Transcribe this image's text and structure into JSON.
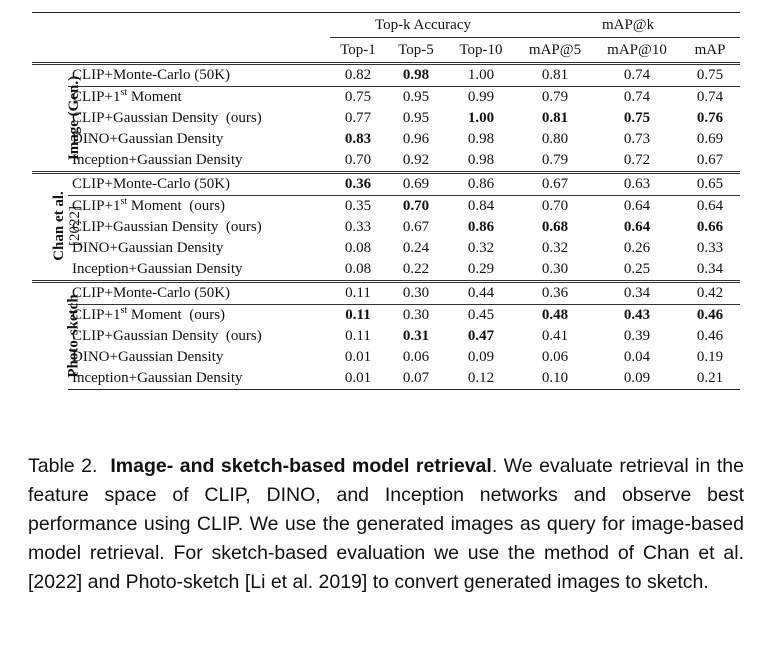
{
  "table": {
    "group_headers": {
      "topk": "Top-k Accuracy",
      "map": "mAP@k"
    },
    "columns": [
      "Top-1",
      "Top-5",
      "Top-10",
      "mAP@5",
      "mAP@10",
      "mAP"
    ],
    "sections": [
      {
        "label": "Image (Gen.)",
        "sublabel": "",
        "rows": [
          {
            "method": "CLIP+Monte-Carlo (50K)",
            "values": [
              "0.82",
              "0.98",
              "1.00",
              "0.81",
              "0.74",
              "0.75"
            ],
            "bold": [
              false,
              true,
              false,
              false,
              false,
              false
            ]
          },
          {
            "method_pre": "CLIP+1",
            "method_sup": "st",
            "method_post": " Moment",
            "values": [
              "0.75",
              "0.95",
              "0.99",
              "0.79",
              "0.74",
              "0.74"
            ],
            "bold": [
              false,
              false,
              false,
              false,
              false,
              false
            ]
          },
          {
            "method": "CLIP+Gaussian Density  (ours)",
            "values": [
              "0.77",
              "0.95",
              "1.00",
              "0.81",
              "0.75",
              "0.76"
            ],
            "bold": [
              false,
              false,
              true,
              true,
              true,
              true
            ]
          },
          {
            "method": "DINO+Gaussian Density",
            "values": [
              "0.83",
              "0.96",
              "0.98",
              "0.80",
              "0.73",
              "0.69"
            ],
            "bold": [
              true,
              false,
              false,
              false,
              false,
              false
            ]
          },
          {
            "method": "Inception+Gaussian Density",
            "values": [
              "0.70",
              "0.92",
              "0.98",
              "0.79",
              "0.72",
              "0.67"
            ],
            "bold": [
              false,
              false,
              false,
              false,
              false,
              false
            ]
          }
        ]
      },
      {
        "label": "Chan et al.",
        "sublabel": "[2022]",
        "rows": [
          {
            "method": "CLIP+Monte-Carlo (50K)",
            "values": [
              "0.36",
              "0.69",
              "0.86",
              "0.67",
              "0.63",
              "0.65"
            ],
            "bold": [
              true,
              false,
              false,
              false,
              false,
              false
            ]
          },
          {
            "method_pre": "CLIP+1",
            "method_sup": "st",
            "method_post": " Moment  (ours)",
            "values": [
              "0.35",
              "0.70",
              "0.84",
              "0.70",
              "0.64",
              "0.64"
            ],
            "bold": [
              false,
              true,
              false,
              false,
              false,
              false
            ]
          },
          {
            "method": "CLIP+Gaussian Density  (ours)",
            "values": [
              "0.33",
              "0.67",
              "0.86",
              "0.68",
              "0.64",
              "0.66"
            ],
            "bold": [
              false,
              false,
              true,
              true,
              true,
              true
            ]
          },
          {
            "method": "DINO+Gaussian Density",
            "values": [
              "0.08",
              "0.24",
              "0.32",
              "0.32",
              "0.26",
              "0.33"
            ],
            "bold": [
              false,
              false,
              false,
              false,
              false,
              false
            ]
          },
          {
            "method": "Inception+Gaussian Density",
            "values": [
              "0.08",
              "0.22",
              "0.29",
              "0.30",
              "0.25",
              "0.34"
            ],
            "bold": [
              false,
              false,
              false,
              false,
              false,
              false
            ]
          }
        ]
      },
      {
        "label": "Photo-sketch",
        "sublabel": "",
        "rows": [
          {
            "method": "CLIP+Monte-Carlo (50K)",
            "values": [
              "0.11",
              "0.30",
              "0.44",
              "0.36",
              "0.34",
              "0.42"
            ],
            "bold": [
              false,
              false,
              false,
              false,
              false,
              false
            ]
          },
          {
            "method_pre": "CLIP+1",
            "method_sup": "st",
            "method_post": " Moment  (ours)",
            "values": [
              "0.11",
              "0.30",
              "0.45",
              "0.48",
              "0.43",
              "0.46"
            ],
            "bold": [
              true,
              false,
              false,
              true,
              true,
              true
            ]
          },
          {
            "method": "CLIP+Gaussian Density  (ours)",
            "values": [
              "0.11",
              "0.31",
              "0.47",
              "0.41",
              "0.39",
              "0.46"
            ],
            "bold": [
              false,
              true,
              true,
              false,
              false,
              false
            ]
          },
          {
            "method": "DINO+Gaussian Density",
            "values": [
              "0.01",
              "0.06",
              "0.09",
              "0.06",
              "0.04",
              "0.19"
            ],
            "bold": [
              false,
              false,
              false,
              false,
              false,
              false
            ]
          },
          {
            "method": "Inception+Gaussian Density",
            "values": [
              "0.01",
              "0.07",
              "0.12",
              "0.10",
              "0.09",
              "0.21"
            ],
            "bold": [
              false,
              false,
              false,
              false,
              false,
              false
            ]
          }
        ]
      }
    ]
  },
  "caption": {
    "label": "Table 2.",
    "title": "Image- and sketch-based model retrieval",
    "body": ". We evaluate retrieval in the feature space of CLIP, DINO, and Inception networks and observe best performance using CLIP. We use the generated images as query for image-based model retrieval. For sketch-based evaluation we use the method of Chan et al. [2022] and Photo-sketch [Li et al. 2019] to convert generated images to sketch."
  }
}
